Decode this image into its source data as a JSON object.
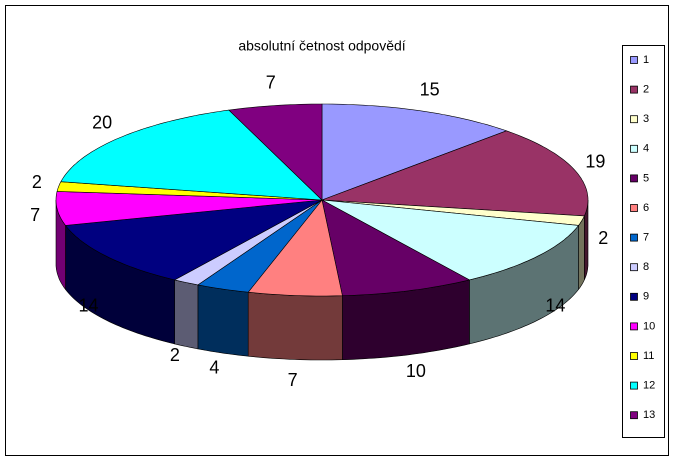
{
  "chart_data": {
    "type": "pie3d",
    "title": "absolutní četnost odpovědí",
    "categories": [
      "1",
      "2",
      "3",
      "4",
      "5",
      "6",
      "7",
      "8",
      "9",
      "10",
      "11",
      "12",
      "13"
    ],
    "values": [
      15,
      19,
      2,
      14,
      10,
      7,
      4,
      2,
      14,
      7,
      2,
      20,
      7
    ],
    "colors": [
      "#9999FF",
      "#993366",
      "#FFFFCC",
      "#CCFFFF",
      "#660066",
      "#FF8080",
      "#0066CC",
      "#CCCCFF",
      "#000080",
      "#FF00FF",
      "#FFFF00",
      "#00FFFF",
      "#800080"
    ],
    "legend": "right"
  }
}
